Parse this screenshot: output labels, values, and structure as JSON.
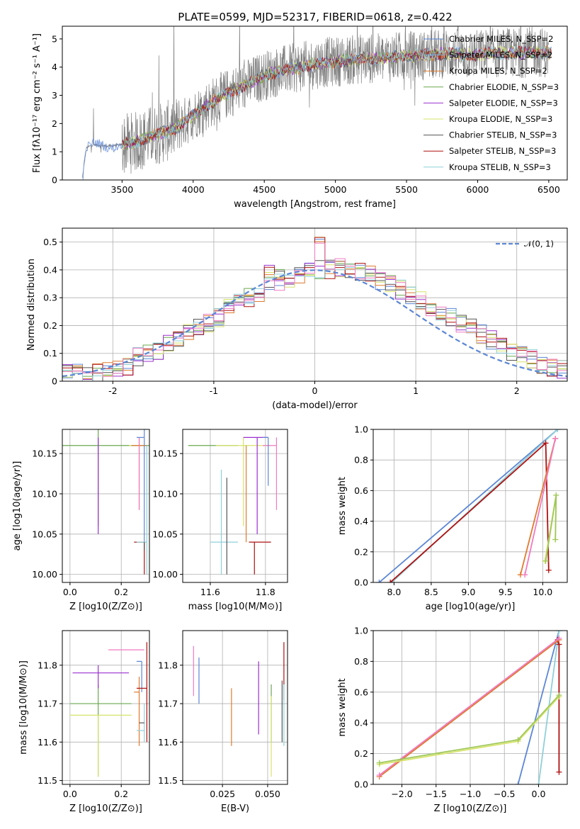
{
  "title": "PLATE=0599, MJD=52317, FIBERID=0618, z=0.422",
  "colors": {
    "Chabrier MILES": "#5b86d6",
    "Salpeter MILES": "#7fb8e0",
    "Kroupa MILES": "#e07a2d",
    "Chabrier ELODIE": "#6aa84f",
    "Salpeter ELODIE": "#9b30d0",
    "Kroupa ELODIE": "#d6e36a",
    "Chabrier STELIB": "#555555",
    "Salpeter STELIB": "#b01010",
    "Kroupa STELIB": "#8fd0d8",
    "Pink": "#f07ac0",
    "data": "#808080"
  },
  "chart_data": [
    {
      "id": "spectrum",
      "type": "line",
      "xlabel": "wavelength [Angstrom, rest frame]",
      "ylabel": "Flux [fλ10⁻¹⁷ erg cm⁻² s⁻¹ A⁻¹]",
      "xlim": [
        3080,
        6630
      ],
      "ylim": [
        0,
        5.45
      ],
      "xticks": [
        3500,
        4000,
        4500,
        5000,
        5500,
        6000,
        6500
      ],
      "yticks": [
        0,
        1,
        2,
        3,
        4,
        5
      ],
      "grid": false,
      "legend_position": "top-right",
      "legend": [
        {
          "label": "Chabrier MILES, N_SSP=2",
          "color": "#5b86d6"
        },
        {
          "label": "Salpeter MILES, N_SSP=2",
          "color": "#7fb8e0"
        },
        {
          "label": "Kroupa MILES, N_SSP=2",
          "color": "#e07a2d"
        },
        {
          "label": "Chabrier ELODIE, N_SSP=3",
          "color": "#6aa84f"
        },
        {
          "label": "Salpeter ELODIE, N_SSP=3",
          "color": "#9b30d0"
        },
        {
          "label": "Kroupa ELODIE, N_SSP=3",
          "color": "#d6e36a"
        },
        {
          "label": "Chabrier STELIB, N_SSP=3",
          "color": "#555555"
        },
        {
          "label": "Salpeter STELIB, N_SSP=3",
          "color": "#b01010"
        },
        {
          "label": "Kroupa STELIB, N_SSP=3",
          "color": "#8fd0d8"
        }
      ],
      "continuum": {
        "x": [
          3220,
          3250,
          3300,
          3400,
          3500,
          3600,
          3700,
          3800,
          3900,
          4000,
          4100,
          4200,
          4300,
          4400,
          4500,
          4600,
          4700,
          4800,
          4900,
          5000,
          5100,
          5200,
          5300,
          5400,
          5500,
          5600,
          5700,
          5800,
          5900,
          6000,
          6100,
          6200,
          6300,
          6400,
          6500
        ],
        "y": [
          0.05,
          1.15,
          1.25,
          1.2,
          1.25,
          1.35,
          1.55,
          1.7,
          1.9,
          2.3,
          2.65,
          2.95,
          3.2,
          3.45,
          3.7,
          3.85,
          3.95,
          4.05,
          4.15,
          4.2,
          4.25,
          4.3,
          4.3,
          4.35,
          4.4,
          4.4,
          4.45,
          4.5,
          4.45,
          4.45,
          4.5,
          4.5,
          4.5,
          4.55,
          4.5
        ]
      }
    },
    {
      "id": "residuals",
      "type": "histogram",
      "xlabel": "(data-model)/error",
      "ylabel": "Normed distribution",
      "xlim": [
        -2.5,
        2.5
      ],
      "ylim": [
        0,
        0.55
      ],
      "xticks": [
        -2,
        -1,
        0,
        1,
        2
      ],
      "yticks": [
        0.0,
        0.1,
        0.2,
        0.3,
        0.4,
        0.5
      ],
      "grid": true,
      "legend_position": "top-right",
      "legend": [
        {
          "label": "𝒩(0, 1)",
          "color": "#5b86d6",
          "dash": true
        }
      ],
      "bin_width": 0.1,
      "base_values": [
        0.03,
        0.03,
        0.02,
        0.03,
        0.04,
        0.04,
        0.05,
        0.09,
        0.1,
        0.11,
        0.13,
        0.15,
        0.17,
        0.19,
        0.21,
        0.23,
        0.26,
        0.28,
        0.3,
        0.32,
        0.34,
        0.36,
        0.37,
        0.38,
        0.39,
        0.4,
        0.4,
        0.41,
        0.4,
        0.39,
        0.38,
        0.36,
        0.35,
        0.33,
        0.31,
        0.29,
        0.27,
        0.25,
        0.23,
        0.21,
        0.19,
        0.17,
        0.15,
        0.13,
        0.11,
        0.09,
        0.08,
        0.06,
        0.05,
        0.04
      ],
      "peaks": [
        {
          "bin": 25,
          "value": 0.52
        },
        {
          "bin": 20,
          "value": 0.42
        },
        {
          "bin": 21,
          "value": 0.42
        }
      ]
    },
    {
      "id": "z-age",
      "type": "errorbar",
      "xlabel": "Z [log10(Z/Z⊙)]",
      "ylabel": "age  [log10(age/yr)]",
      "xlim": [
        -0.03,
        0.31
      ],
      "ylim": [
        9.99,
        10.18
      ],
      "xticks": [
        0.0,
        0.2
      ],
      "xticklabels": [
        "0.0",
        "0.2"
      ],
      "yticks": [
        10.0,
        10.05,
        10.1,
        10.15
      ],
      "yticklabels": [
        "10.00",
        "10.05",
        "10.10",
        "10.15"
      ],
      "grid": true,
      "points": [
        {
          "x": 0.11,
          "y": 10.16,
          "xl": 0.14,
          "xh": 0.24,
          "yl": 10.06,
          "yh": 10.18,
          "color": "#6aa84f"
        },
        {
          "x": 0.11,
          "y": 10.16,
          "xl": 0.0,
          "xh": 0.0,
          "yl": 10.05,
          "yh": 10.17,
          "color": "#9b30d0"
        },
        {
          "x": 0.24,
          "y": 10.16,
          "xl": 0.01,
          "xh": 0.0,
          "yl": 10.16,
          "yh": 10.16,
          "color": "#d6e36a"
        },
        {
          "x": 0.27,
          "y": 10.16,
          "xl": 0.03,
          "xh": 0.03,
          "yl": 10.08,
          "yh": 10.17,
          "color": "#e07a2d"
        },
        {
          "x": 0.27,
          "y": 10.16,
          "xl": 0.0,
          "xh": 0.0,
          "yl": 10.08,
          "yh": 10.17,
          "color": "#f07ac0"
        },
        {
          "x": 0.29,
          "y": 10.17,
          "xl": 0.03,
          "xh": 0.0,
          "yl": 10.04,
          "yh": 10.18,
          "color": "#5b86d6"
        },
        {
          "x": 0.29,
          "y": 10.04,
          "xl": 0.04,
          "xh": 0.0,
          "yl": 10.0,
          "yh": 10.04,
          "color": "#b01010"
        },
        {
          "x": 0.3,
          "y": 10.04,
          "xl": 0.04,
          "xh": 0.0,
          "yl": 10.0,
          "yh": 10.16,
          "color": "#8fd0d8"
        },
        {
          "x": 0.29,
          "y": 10.04,
          "xl": 0.0,
          "xh": 0.0,
          "yl": 10.03,
          "yh": 10.04,
          "color": "#555555"
        }
      ]
    },
    {
      "id": "mass-age",
      "type": "errorbar",
      "xlabel": "mass [log10(M/M⊙)]",
      "ylabel": "",
      "xlim": [
        11.5,
        11.88
      ],
      "ylim": [
        9.99,
        10.18
      ],
      "xticks": [
        11.6,
        11.8
      ],
      "xticklabels": [
        "11.6",
        "11.8"
      ],
      "yticks": [
        10.0,
        10.05,
        10.1,
        10.15
      ],
      "yticklabels": [
        "10.00",
        "10.05",
        "10.10",
        "10.15"
      ],
      "grid": true,
      "points": [
        {
          "x": 11.7,
          "y": 10.16,
          "xl": 0.18,
          "xh": 0.0,
          "yl": 10.16,
          "yh": 10.16,
          "color": "#6aa84f"
        },
        {
          "x": 11.72,
          "y": 10.16,
          "xl": 0.1,
          "xh": 0.1,
          "yl": 10.06,
          "yh": 10.17,
          "color": "#d6e36a"
        },
        {
          "x": 11.77,
          "y": 10.17,
          "xl": 0.05,
          "xh": 0.04,
          "yl": 10.05,
          "yh": 10.17,
          "color": "#9b30d0"
        },
        {
          "x": 11.84,
          "y": 10.16,
          "xl": 0.05,
          "xh": 0.0,
          "yl": 10.08,
          "yh": 10.17,
          "color": "#f07ac0"
        },
        {
          "x": 11.81,
          "y": 10.17,
          "xl": 0.02,
          "xh": 0.0,
          "yl": 10.11,
          "yh": 10.17,
          "color": "#5b86d6"
        },
        {
          "x": 11.64,
          "y": 10.04,
          "xl": 0.04,
          "xh": 0.06,
          "yl": 10.0,
          "yh": 10.13,
          "color": "#8fd0d8"
        },
        {
          "x": 11.76,
          "y": 10.04,
          "xl": 0.02,
          "xh": 0.06,
          "yl": 10.0,
          "yh": 10.04,
          "color": "#b01010"
        },
        {
          "x": 11.66,
          "y": 10.04,
          "xl": 0.0,
          "xh": 0.0,
          "yl": 10.0,
          "yh": 10.12,
          "color": "#555555"
        },
        {
          "x": 11.73,
          "y": 10.04,
          "xl": 0.0,
          "xh": 0.0,
          "yl": 10.04,
          "yh": 10.16,
          "color": "#e07a2d"
        }
      ]
    },
    {
      "id": "age-weight",
      "type": "line",
      "xlabel": "age  [log10(age/yr)]",
      "ylabel": "mass weight",
      "xlim": [
        7.72,
        10.33
      ],
      "ylim": [
        0,
        1.0
      ],
      "xticks": [
        8.0,
        8.5,
        9.0,
        9.5,
        10.0
      ],
      "xticklabels": [
        "8.0",
        "8.5",
        "9.0",
        "9.5",
        "10.0"
      ],
      "yticks": [
        0.0,
        0.2,
        0.4,
        0.6,
        0.8,
        1.0
      ],
      "yticklabels": [
        "0.0",
        "0.2",
        "0.4",
        "0.6",
        "0.8",
        "1.0"
      ],
      "grid": true,
      "series": [
        {
          "x": [
            7.8,
            10.2
          ],
          "y": [
            0.0,
            1.0
          ],
          "color": "#5b86d6"
        },
        {
          "x": [
            7.97,
            10.2
          ],
          "y": [
            0.0,
            1.0
          ],
          "color": "#8fd0d8"
        },
        {
          "x": [
            7.95,
            10.04,
            10.08
          ],
          "y": [
            0.0,
            0.91,
            0.08
          ],
          "color": "#b01010"
        },
        {
          "x": [
            9.7,
            10.17
          ],
          "y": [
            0.05,
            0.94
          ],
          "color": "#e07a2d"
        },
        {
          "x": [
            9.76,
            10.17
          ],
          "y": [
            0.05,
            0.94
          ],
          "color": "#f07ac0"
        },
        {
          "x": [
            10.03,
            10.18,
            10.17
          ],
          "y": [
            0.14,
            0.57,
            0.28
          ],
          "color": "#d6e36a"
        },
        {
          "x": [
            10.04,
            10.18,
            10.17
          ],
          "y": [
            0.14,
            0.57,
            0.28
          ],
          "color": "#9fc85a"
        }
      ]
    },
    {
      "id": "z-mass",
      "type": "errorbar",
      "xlabel": "Z [log10(Z/Z⊙)]",
      "ylabel": "mass [log10(M/M⊙)]",
      "xlim": [
        -0.03,
        0.31
      ],
      "ylim": [
        11.49,
        11.89
      ],
      "xticks": [
        0.0,
        0.2
      ],
      "xticklabels": [
        "0.0",
        "0.2"
      ],
      "yticks": [
        11.5,
        11.6,
        11.7,
        11.8
      ],
      "yticklabels": [
        "11.5",
        "11.6",
        "11.7",
        "11.8"
      ],
      "grid": true,
      "points": [
        {
          "x": 0.11,
          "y": 11.7,
          "xl": 0.11,
          "xh": 0.13,
          "yl": 11.51,
          "yh": 11.75,
          "color": "#6aa84f"
        },
        {
          "x": 0.11,
          "y": 11.67,
          "xl": 0.11,
          "xh": 0.13,
          "yl": 11.51,
          "yh": 11.67,
          "color": "#d6e36a"
        },
        {
          "x": 0.11,
          "y": 11.78,
          "xl": 0.1,
          "xh": 0.12,
          "yl": 11.74,
          "yh": 11.8,
          "color": "#9b30d0"
        },
        {
          "x": 0.25,
          "y": 11.84,
          "xl": 0.1,
          "xh": 0.04,
          "yl": 11.84,
          "yh": 11.84,
          "color": "#f07ac0"
        },
        {
          "x": 0.27,
          "y": 11.73,
          "xl": 0.02,
          "xh": 0.0,
          "yl": 11.59,
          "yh": 11.77,
          "color": "#e07a2d"
        },
        {
          "x": 0.28,
          "y": 11.81,
          "xl": 0.02,
          "xh": 0.0,
          "yl": 11.73,
          "yh": 11.81,
          "color": "#5b86d6"
        },
        {
          "x": 0.3,
          "y": 11.74,
          "xl": 0.04,
          "xh": 0.0,
          "yl": 11.6,
          "yh": 11.86,
          "color": "#b01010"
        },
        {
          "x": 0.29,
          "y": 11.63,
          "xl": 0.03,
          "xh": 0.0,
          "yl": 11.6,
          "yh": 11.7,
          "color": "#8fd0d8"
        },
        {
          "x": 0.29,
          "y": 11.65,
          "xl": 0.02,
          "xh": 0.0,
          "yl": 11.65,
          "yh": 11.65,
          "color": "#555555"
        }
      ]
    },
    {
      "id": "ebv-mass",
      "type": "errorbar",
      "xlabel": "E(B-V)",
      "ylabel": "",
      "xlim": [
        0.003,
        0.061
      ],
      "ylim": [
        11.49,
        11.89
      ],
      "xticks": [
        0.025,
        0.05
      ],
      "xticklabels": [
        "0.025",
        "0.050"
      ],
      "yticks": [
        11.5,
        11.6,
        11.7,
        11.8
      ],
      "yticklabels": [
        "11.5",
        "11.6",
        "11.7",
        "11.8"
      ],
      "grid": true,
      "points": [
        {
          "x": 0.009,
          "y": 11.78,
          "xl": 0.0,
          "xh": 0.0,
          "yl": 11.72,
          "yh": 11.85,
          "color": "#f07ac0"
        },
        {
          "x": 0.012,
          "y": 11.76,
          "xl": 0.0,
          "xh": 0.0,
          "yl": 11.7,
          "yh": 11.82,
          "color": "#5b86d6"
        },
        {
          "x": 0.03,
          "y": 11.66,
          "xl": 0.0,
          "xh": 0.0,
          "yl": 11.59,
          "yh": 11.74,
          "color": "#e07a2d"
        },
        {
          "x": 0.045,
          "y": 11.73,
          "xl": 0.0,
          "xh": 0.0,
          "yl": 11.62,
          "yh": 11.81,
          "color": "#9b30d0"
        },
        {
          "x": 0.052,
          "y": 11.65,
          "xl": 0.0,
          "xh": 0.0,
          "yl": 11.6,
          "yh": 11.75,
          "color": "#6aa84f"
        },
        {
          "x": 0.052,
          "y": 11.6,
          "xl": 0.0,
          "xh": 0.0,
          "yl": 11.51,
          "yh": 11.72,
          "color": "#d6e36a"
        },
        {
          "x": 0.059,
          "y": 11.78,
          "xl": 0.0,
          "xh": 0.0,
          "yl": 11.71,
          "yh": 11.86,
          "color": "#b01010"
        },
        {
          "x": 0.059,
          "y": 11.67,
          "xl": 0.0,
          "xh": 0.0,
          "yl": 11.59,
          "yh": 11.75,
          "color": "#8fd0d8"
        },
        {
          "x": 0.058,
          "y": 11.7,
          "xl": 0.0,
          "xh": 0.0,
          "yl": 11.6,
          "yh": 11.76,
          "color": "#555555"
        }
      ]
    },
    {
      "id": "z-weight",
      "type": "line",
      "xlabel": "Z [log10(Z/Z⊙)]",
      "ylabel": "mass weight",
      "xlim": [
        -2.42,
        0.42
      ],
      "ylim": [
        0,
        1.0
      ],
      "xticks": [
        -2.0,
        -1.5,
        -1.0,
        -0.5,
        0.0
      ],
      "xticklabels": [
        "−2.0",
        "−1.5",
        "−1.0",
        "−0.5",
        "0.0"
      ],
      "yticks": [
        0.0,
        0.2,
        0.4,
        0.6,
        0.8,
        1.0
      ],
      "yticklabels": [
        "0.0",
        "0.2",
        "0.4",
        "0.6",
        "0.8",
        "1.0"
      ],
      "grid": true,
      "series": [
        {
          "x": [
            -0.3,
            0.3
          ],
          "y": [
            0.0,
            1.0
          ],
          "color": "#5b86d6"
        },
        {
          "x": [
            0.0,
            0.3
          ],
          "y": [
            0.0,
            1.0
          ],
          "color": "#8fd0d8"
        },
        {
          "x": [
            0.3,
            0.3,
            0.28
          ],
          "y": [
            0.08,
            0.91,
            0.94
          ],
          "color": "#b01010"
        },
        {
          "x": [
            -2.33,
            0.3
          ],
          "y": [
            0.05,
            0.94
          ],
          "color": "#e07a2d"
        },
        {
          "x": [
            -2.33,
            0.3
          ],
          "y": [
            0.06,
            0.95
          ],
          "color": "#f07ac0"
        },
        {
          "x": [
            -2.33,
            -0.3,
            0.3
          ],
          "y": [
            0.13,
            0.28,
            0.57
          ],
          "color": "#d6e36a"
        },
        {
          "x": [
            -2.33,
            -0.3,
            0.3
          ],
          "y": [
            0.14,
            0.29,
            0.58
          ],
          "color": "#9fc85a"
        }
      ]
    }
  ]
}
